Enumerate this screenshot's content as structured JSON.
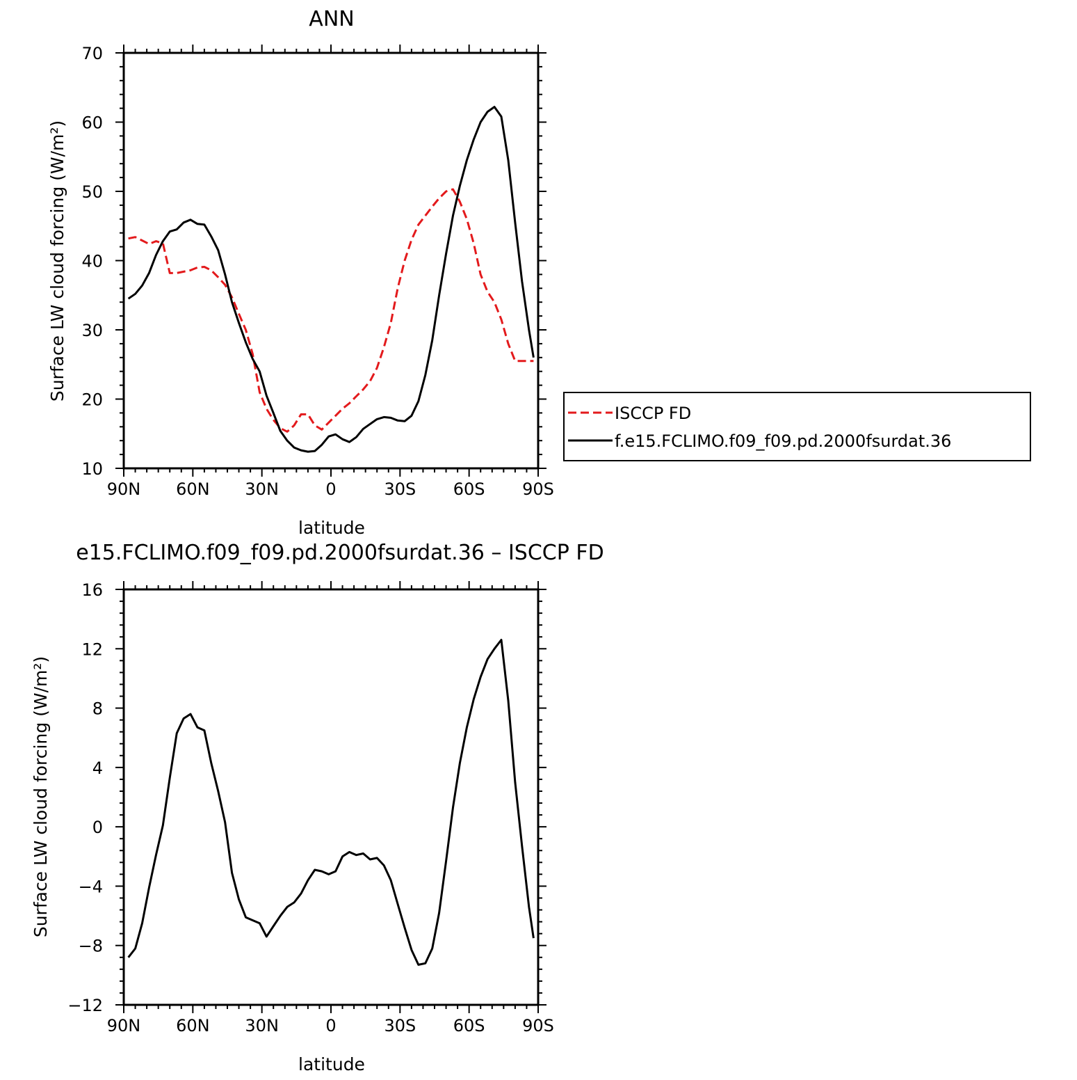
{
  "chart_data": [
    {
      "type": "line",
      "title": "ANN",
      "xlabel": "latitude",
      "ylabel": "Surface LW cloud forcing (W/m²)",
      "x_tick_labels": [
        "90N",
        "60N",
        "30N",
        "0",
        "30S",
        "60S",
        "90S"
      ],
      "x_tick_values": [
        90,
        60,
        30,
        0,
        -30,
        -60,
        -90
      ],
      "xlim": [
        90,
        -90
      ],
      "ylim": [
        10,
        70
      ],
      "y_ticks": [
        10,
        20,
        30,
        40,
        50,
        60,
        70
      ],
      "grid": false,
      "legend_position": "right",
      "series": [
        {
          "name": "ISCCP FD",
          "color": "#e31a1c",
          "style": "dashed",
          "x": [
            88,
            85,
            82,
            79,
            76,
            73,
            70,
            67,
            64,
            61,
            58,
            55,
            52,
            49,
            46,
            43,
            40,
            37,
            34,
            31,
            28,
            25,
            22,
            19,
            16,
            13,
            10,
            7,
            4,
            1,
            -2,
            -5,
            -8,
            -11,
            -14,
            -17,
            -20,
            -23,
            -26,
            -29,
            -32,
            -35,
            -38,
            -41,
            -44,
            -47,
            -50,
            -53,
            -56,
            -59,
            -62,
            -65,
            -68,
            -71,
            -74,
            -77,
            -80,
            -83,
            -86,
            -88
          ],
          "y": [
            43.2,
            43.4,
            42.9,
            42.4,
            42.8,
            42.5,
            38.2,
            38.2,
            38.4,
            38.6,
            39.0,
            39.1,
            38.6,
            37.6,
            36.5,
            34.7,
            32.3,
            30.0,
            26.5,
            21.0,
            18.6,
            17.0,
            15.8,
            15.3,
            16.2,
            17.8,
            17.8,
            16.2,
            15.6,
            16.6,
            17.6,
            18.6,
            19.4,
            20.4,
            21.4,
            22.6,
            24.5,
            27.5,
            31.0,
            36.0,
            40.0,
            43.0,
            45.2,
            46.5,
            47.8,
            49.0,
            50.0,
            50.3,
            48.5,
            46.0,
            42.5,
            38.0,
            35.5,
            34.0,
            31.5,
            28.0,
            25.5,
            25.5,
            25.5,
            25.5
          ]
        },
        {
          "name": "f.e15.FCLIMO.f09_f09.pd.2000fsurdat.36",
          "color": "#000000",
          "style": "solid",
          "x": [
            88,
            85,
            82,
            79,
            76,
            73,
            70,
            67,
            64,
            61,
            58,
            55,
            52,
            49,
            46,
            43,
            40,
            37,
            34,
            31,
            28,
            25,
            22,
            19,
            16,
            13,
            10,
            7,
            4,
            1,
            -2,
            -5,
            -8,
            -11,
            -14,
            -17,
            -20,
            -23,
            -26,
            -29,
            -32,
            -35,
            -38,
            -41,
            -44,
            -47,
            -50,
            -53,
            -56,
            -59,
            -62,
            -65,
            -68,
            -71,
            -74,
            -77,
            -80,
            -83,
            -86,
            -88
          ],
          "y": [
            34.5,
            35.2,
            36.4,
            38.2,
            40.8,
            42.8,
            44.2,
            44.5,
            45.5,
            45.9,
            45.3,
            45.2,
            43.5,
            41.5,
            38.0,
            34.0,
            31.0,
            28.2,
            25.8,
            24.0,
            20.5,
            18.0,
            15.4,
            14.0,
            13.0,
            12.6,
            12.4,
            12.5,
            13.4,
            14.6,
            14.9,
            14.2,
            13.8,
            14.5,
            15.7,
            16.4,
            17.1,
            17.4,
            17.3,
            16.9,
            16.8,
            17.6,
            19.7,
            23.5,
            28.5,
            35.0,
            41.0,
            46.5,
            50.8,
            54.5,
            57.5,
            60.0,
            61.5,
            62.2,
            60.8,
            54.5,
            45.5,
            37.0,
            30.0,
            26.0
          ]
        }
      ]
    },
    {
      "type": "line",
      "title": "e15.FCLIMO.f09_f09.pd.2000fsurdat.36 – ISCCP FD",
      "xlabel": "latitude",
      "ylabel": "Surface LW cloud forcing (W/m²)",
      "x_tick_labels": [
        "90N",
        "60N",
        "30N",
        "0",
        "30S",
        "60S",
        "90S"
      ],
      "x_tick_values": [
        90,
        60,
        30,
        0,
        -30,
        -60,
        -90
      ],
      "xlim": [
        90,
        -90
      ],
      "ylim": [
        -12,
        16
      ],
      "y_ticks": [
        -12,
        -8,
        -4,
        0,
        4,
        8,
        12,
        16
      ],
      "grid": false,
      "series": [
        {
          "color": "#000000",
          "style": "solid",
          "x": [
            88,
            85,
            82,
            79,
            76,
            73,
            70,
            67,
            64,
            61,
            58,
            55,
            52,
            49,
            46,
            43,
            40,
            37,
            34,
            31,
            28,
            25,
            22,
            19,
            16,
            13,
            10,
            7,
            4,
            1,
            -2,
            -5,
            -8,
            -11,
            -14,
            -17,
            -20,
            -23,
            -26,
            -29,
            -32,
            -35,
            -38,
            -41,
            -44,
            -47,
            -50,
            -53,
            -56,
            -59,
            -62,
            -65,
            -68,
            -71,
            -74,
            -77,
            -80,
            -83,
            -86,
            -88
          ],
          "y": [
            -8.8,
            -8.2,
            -6.5,
            -4.1,
            -1.9,
            0.1,
            3.3,
            6.3,
            7.3,
            7.6,
            6.7,
            6.5,
            4.3,
            2.4,
            0.3,
            -3.1,
            -4.9,
            -6.1,
            -6.3,
            -6.5,
            -7.4,
            -6.7,
            -6.0,
            -5.4,
            -5.1,
            -4.5,
            -3.6,
            -2.9,
            -3.0,
            -3.2,
            -3.0,
            -2.0,
            -1.7,
            -1.9,
            -1.8,
            -2.2,
            -2.1,
            -2.6,
            -3.6,
            -5.2,
            -6.8,
            -8.3,
            -9.3,
            -9.2,
            -8.2,
            -5.8,
            -2.3,
            1.3,
            4.3,
            6.7,
            8.6,
            10.1,
            11.3,
            12.0,
            12.6,
            8.5,
            3.0,
            -1.3,
            -5.4,
            -7.5
          ]
        }
      ]
    }
  ]
}
